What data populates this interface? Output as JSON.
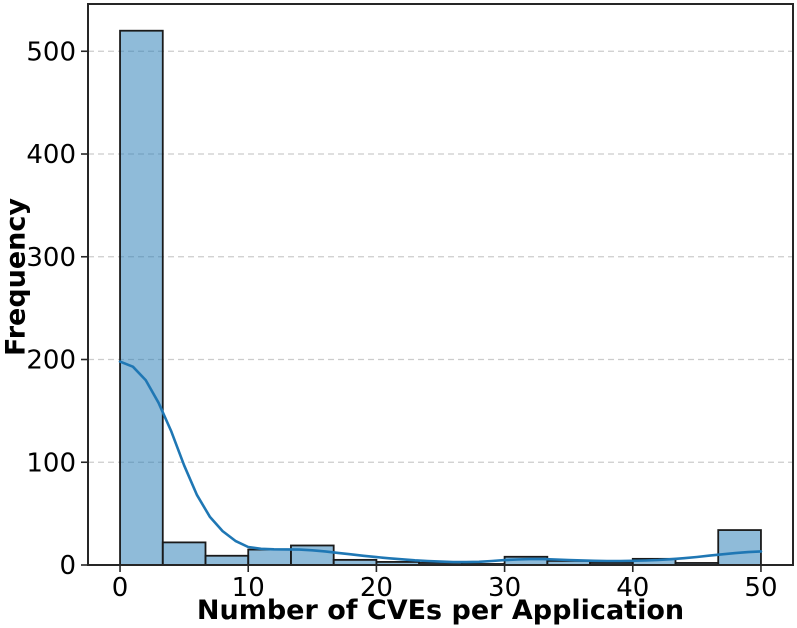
{
  "chart_data": {
    "type": "histogram",
    "title": "",
    "xlabel": "Number of CVEs per Application",
    "ylabel": "Frequency",
    "xlim": [
      -2.5,
      52.5
    ],
    "ylim": [
      0,
      546
    ],
    "xticks": [
      0,
      10,
      20,
      30,
      40,
      50
    ],
    "yticks": [
      0,
      100,
      200,
      300,
      400,
      500
    ],
    "grid": "horizontal dashed, shown at y=100..500",
    "legend": "none",
    "bin_edges": [
      0,
      3.333,
      6.667,
      10,
      13.333,
      16.667,
      20,
      23.333,
      26.667,
      30,
      33.333,
      36.667,
      40,
      43.333,
      46.667,
      50
    ],
    "counts": [
      520,
      22,
      9,
      15,
      19,
      5,
      3,
      2,
      1,
      8,
      4,
      2,
      6,
      2,
      34
    ],
    "kde_curve": {
      "x_start": 0,
      "x_step": 1,
      "y": [
        198,
        193,
        180,
        158,
        130,
        97,
        68,
        47,
        33,
        23.5,
        17.5,
        15.8,
        15.3,
        15.2,
        15,
        14.3,
        13.2,
        11.8,
        10.4,
        9,
        7.7,
        6.5,
        5.5,
        4.6,
        3.9,
        3.3,
        2.9,
        2.8,
        3.1,
        3.9,
        4.8,
        5.4,
        5.7,
        5.7,
        5.4,
        4.9,
        4.5,
        4.1,
        3.9,
        3.9,
        4.1,
        4.4,
        4.9,
        5.6,
        6.6,
        7.8,
        9.1,
        10.4,
        11.6,
        12.6,
        13.2
      ]
    },
    "colors": {
      "bar_fill": "#1f77b4",
      "bar_fill_alpha": 0.5,
      "bar_edge": "#1a1a1a",
      "kde_line": "#1f77b4",
      "grid": "#cccccc",
      "spine": "#262626",
      "tick": "#262626",
      "text": "#000000",
      "background": "#ffffff"
    }
  }
}
